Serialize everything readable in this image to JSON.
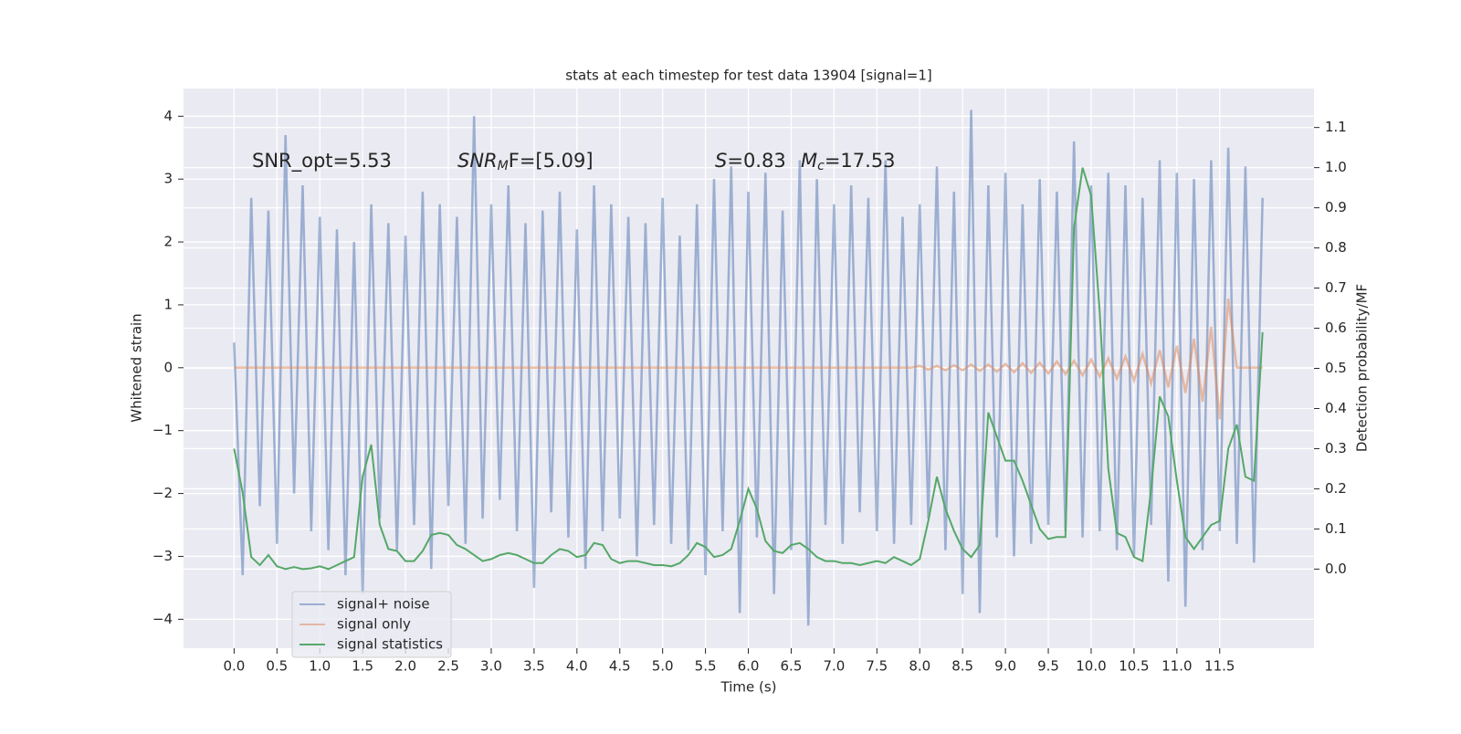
{
  "chart_data": {
    "type": "line",
    "title": "stats at each timestep for test data 13904 [signal=1]",
    "xlabel": "Time (s)",
    "ylabel": "Whitened strain",
    "y2label": "Detection probability/MF",
    "annotations": [
      {
        "text": "SNR_opt=5.53"
      },
      {
        "italic": "SNR",
        "sub": "M",
        "text": "F=[5.09]"
      },
      {
        "italic": "S",
        "text": "=0.83"
      },
      {
        "italic": "M",
        "sub": "c",
        "text": "=17.53"
      }
    ],
    "legend": "lower left",
    "grid": true,
    "xlim": [
      -0.59,
      12.6
    ],
    "ylim": [
      -4.46,
      4.44
    ],
    "y2lim": [
      -0.197,
      1.197
    ],
    "xticks": [
      {
        "value": 0,
        "label": "0.0"
      },
      {
        "value": 0.5,
        "label": "0.5"
      },
      {
        "value": 1,
        "label": "1.0"
      },
      {
        "value": 1.5,
        "label": "1.5"
      },
      {
        "value": 2,
        "label": "2.0"
      },
      {
        "value": 2.5,
        "label": "2.5"
      },
      {
        "value": 3,
        "label": "3.0"
      },
      {
        "value": 3.5,
        "label": "3.5"
      },
      {
        "value": 4,
        "label": "4.0"
      },
      {
        "value": 4.5,
        "label": "4.5"
      },
      {
        "value": 5,
        "label": "5.0"
      },
      {
        "value": 5.5,
        "label": "5.5"
      },
      {
        "value": 6,
        "label": "6.0"
      },
      {
        "value": 6.5,
        "label": "6.5"
      },
      {
        "value": 7,
        "label": "7.0"
      },
      {
        "value": 7.5,
        "label": "7.5"
      },
      {
        "value": 8,
        "label": "8.0"
      },
      {
        "value": 8.5,
        "label": "8.5"
      },
      {
        "value": 9,
        "label": "9.0"
      },
      {
        "value": 9.5,
        "label": "9.5"
      },
      {
        "value": 10,
        "label": "10.0"
      },
      {
        "value": 10.5,
        "label": "10.5"
      },
      {
        "value": 11,
        "label": "11.0"
      },
      {
        "value": 11.5,
        "label": "11.5"
      }
    ],
    "yticks": [
      {
        "value": -4,
        "label": "−4"
      },
      {
        "value": -3,
        "label": "−3"
      },
      {
        "value": -2,
        "label": "−2"
      },
      {
        "value": -1,
        "label": "−1"
      },
      0,
      1,
      2,
      3,
      4
    ],
    "y2ticks": [
      {
        "value": 0,
        "label": "0.0"
      },
      {
        "value": 0.1,
        "label": "0.1"
      },
      {
        "value": 0.2,
        "label": "0.2"
      },
      {
        "value": 0.3,
        "label": "0.3"
      },
      {
        "value": 0.4,
        "label": "0.4"
      },
      {
        "value": 0.5,
        "label": "0.5"
      },
      {
        "value": 0.6,
        "label": "0.6"
      },
      {
        "value": 0.7,
        "label": "0.7"
      },
      {
        "value": 0.8,
        "label": "0.8"
      },
      {
        "value": 0.9,
        "label": "0.9"
      },
      {
        "value": 1,
        "label": "1.0"
      },
      {
        "value": 1.1,
        "label": "1.1"
      }
    ],
    "x": [
      0,
      0.1,
      0.2,
      0.3,
      0.4,
      0.5,
      0.6,
      0.7,
      0.8,
      0.9,
      1,
      1.1,
      1.2,
      1.3,
      1.4,
      1.5,
      1.6,
      1.7,
      1.8,
      1.9,
      2,
      2.1,
      2.2,
      2.3,
      2.4,
      2.5,
      2.6,
      2.7,
      2.8,
      2.9,
      3,
      3.1,
      3.2,
      3.3,
      3.4,
      3.5,
      3.6,
      3.7,
      3.8,
      3.9,
      4,
      4.1,
      4.2,
      4.3,
      4.4,
      4.5,
      4.6,
      4.7,
      4.8,
      4.9,
      5,
      5.1,
      5.2,
      5.3,
      5.4,
      5.5,
      5.6,
      5.7,
      5.8,
      5.9,
      6,
      6.1,
      6.2,
      6.3,
      6.4,
      6.5,
      6.6,
      6.7,
      6.8,
      6.9,
      7,
      7.1,
      7.2,
      7.3,
      7.4,
      7.5,
      7.6,
      7.7,
      7.8,
      7.9,
      8,
      8.1,
      8.2,
      8.3,
      8.4,
      8.5,
      8.6,
      8.7,
      8.8,
      8.9,
      9,
      9.1,
      9.2,
      9.3,
      9.4,
      9.5,
      9.6,
      9.7,
      9.8,
      9.9,
      10,
      10.1,
      10.2,
      10.3,
      10.4,
      10.5,
      10.6,
      10.7,
      10.8,
      10.9,
      11,
      11.1,
      11.2,
      11.3,
      11.4,
      11.5,
      11.6,
      11.7,
      11.8,
      11.9,
      12
    ],
    "series": [
      {
        "name": "signal+ noise",
        "color": "#4c72b0",
        "opacity": 0.5,
        "axis": "y",
        "values": [
          0.4,
          -3.3,
          2.7,
          -2.2,
          2.5,
          -2.8,
          3.7,
          -2.0,
          2.9,
          -2.6,
          2.4,
          -2.9,
          2.2,
          -3.3,
          2.0,
          -3.6,
          2.6,
          -2.4,
          2.3,
          -2.9,
          2.1,
          -2.5,
          2.8,
          -3.2,
          2.6,
          -2.2,
          2.4,
          -2.8,
          4.0,
          -2.4,
          2.6,
          -2.1,
          2.9,
          -2.6,
          2.3,
          -3.5,
          2.5,
          -2.3,
          2.8,
          -2.7,
          2.2,
          -3.2,
          2.9,
          -2.6,
          2.6,
          -2.4,
          2.4,
          -3.0,
          2.3,
          -2.5,
          2.7,
          -2.8,
          2.1,
          -2.9,
          2.6,
          -3.3,
          3.0,
          -2.6,
          3.2,
          -3.9,
          2.8,
          -2.7,
          3.1,
          -3.6,
          2.5,
          -2.9,
          3.3,
          -4.1,
          3.0,
          -2.5,
          2.6,
          -2.8,
          2.9,
          -2.3,
          2.7,
          -2.6,
          3.3,
          -2.8,
          2.4,
          -2.5,
          2.6,
          -2.4,
          3.2,
          -2.9,
          2.8,
          -3.6,
          4.1,
          -3.9,
          2.9,
          -2.7,
          3.1,
          -3.0,
          2.6,
          -2.8,
          3.0,
          -2.5,
          2.8,
          -2.6,
          3.6,
          -2.7,
          2.9,
          -2.6,
          3.1,
          -2.9,
          2.9,
          -3.0,
          2.7,
          -2.5,
          3.3,
          -3.4,
          3.1,
          -3.8,
          3.0,
          -2.9,
          3.3,
          -2.6,
          3.5,
          -2.8,
          3.2,
          -3.1,
          2.7
        ]
      },
      {
        "name": "signal only",
        "color": "#dd8452",
        "opacity": 0.5,
        "axis": "y",
        "values": [
          0,
          0,
          0,
          0,
          0,
          0,
          0,
          0,
          0,
          0,
          0,
          0,
          0,
          0,
          0,
          0,
          0,
          0,
          0,
          0,
          0,
          0,
          0,
          0,
          0,
          0,
          0,
          0,
          0,
          0,
          0,
          0,
          0,
          0,
          0,
          0,
          0,
          0,
          0,
          0,
          0,
          0,
          0,
          0,
          0,
          0,
          0,
          0,
          0,
          0,
          0,
          0,
          0,
          0,
          0,
          0,
          0,
          0,
          0,
          0,
          0,
          0,
          0,
          0,
          0,
          0,
          0,
          0,
          0,
          0,
          0,
          0,
          0,
          0,
          0,
          0,
          0,
          0,
          0,
          0,
          0.03,
          -0.03,
          0.03,
          -0.04,
          0.04,
          -0.04,
          0.05,
          -0.05,
          0.05,
          -0.06,
          0.06,
          -0.07,
          0.07,
          -0.08,
          0.08,
          -0.09,
          0.1,
          -0.1,
          0.11,
          -0.12,
          0.13,
          -0.14,
          0.15,
          -0.17,
          0.18,
          -0.2,
          0.22,
          -0.25,
          0.28,
          -0.31,
          0.35,
          -0.4,
          0.46,
          -0.54,
          0.65,
          -0.82,
          1.1,
          0,
          0,
          0,
          0
        ]
      },
      {
        "name": "signal statistics",
        "color": "#55a868",
        "opacity": 1,
        "axis": "y2",
        "values": [
          0.3,
          0.19,
          0.03,
          0.01,
          0.035,
          0.007,
          0.0,
          0.005,
          0.0,
          0.002,
          0.007,
          0.0,
          0.01,
          0.02,
          0.03,
          0.23,
          0.31,
          0.11,
          0.05,
          0.045,
          0.02,
          0.02,
          0.045,
          0.085,
          0.09,
          0.085,
          0.06,
          0.05,
          0.035,
          0.02,
          0.025,
          0.035,
          0.04,
          0.035,
          0.025,
          0.015,
          0.015,
          0.035,
          0.05,
          0.045,
          0.03,
          0.035,
          0.065,
          0.06,
          0.025,
          0.015,
          0.02,
          0.02,
          0.015,
          0.01,
          0.01,
          0.007,
          0.015,
          0.035,
          0.065,
          0.055,
          0.03,
          0.035,
          0.05,
          0.12,
          0.2,
          0.15,
          0.07,
          0.045,
          0.04,
          0.06,
          0.065,
          0.05,
          0.03,
          0.02,
          0.02,
          0.015,
          0.015,
          0.01,
          0.015,
          0.02,
          0.015,
          0.03,
          0.02,
          0.01,
          0.025,
          0.12,
          0.23,
          0.15,
          0.095,
          0.05,
          0.03,
          0.06,
          0.39,
          0.33,
          0.27,
          0.27,
          0.22,
          0.16,
          0.1,
          0.075,
          0.08,
          0.08,
          0.85,
          1.0,
          0.93,
          0.64,
          0.25,
          0.09,
          0.08,
          0.03,
          0.02,
          0.2,
          0.43,
          0.38,
          0.22,
          0.08,
          0.05,
          0.08,
          0.11,
          0.12,
          0.3,
          0.36,
          0.23,
          0.22,
          0.59
        ]
      }
    ]
  }
}
